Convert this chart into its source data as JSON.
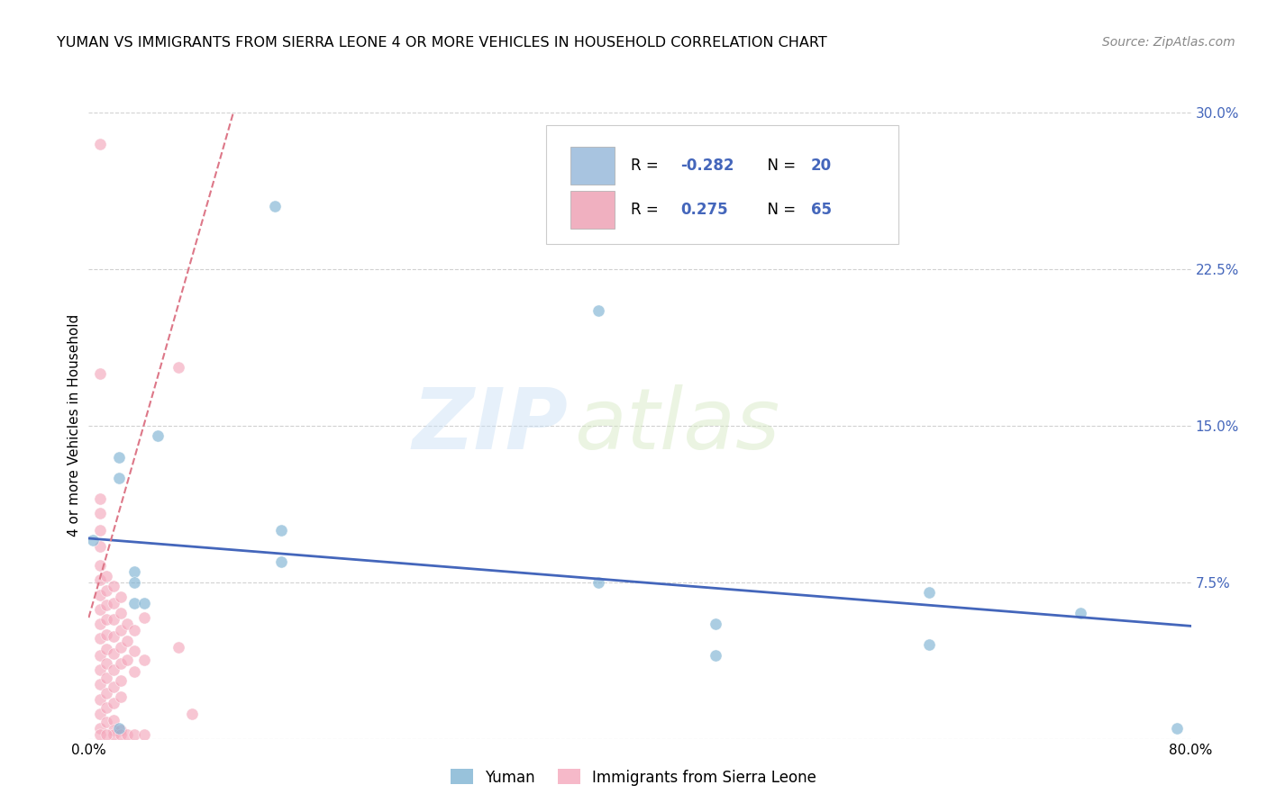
{
  "title": "YUMAN VS IMMIGRANTS FROM SIERRA LEONE 4 OR MORE VEHICLES IN HOUSEHOLD CORRELATION CHART",
  "source": "Source: ZipAtlas.com",
  "ylabel": "4 or more Vehicles in Household",
  "xlim": [
    0.0,
    0.8
  ],
  "ylim": [
    0.0,
    0.3
  ],
  "yticks": [
    0.0,
    0.075,
    0.15,
    0.225,
    0.3
  ],
  "ytick_labels_right": [
    "",
    "7.5%",
    "15.0%",
    "22.5%",
    "30.0%"
  ],
  "xticks": [
    0.0,
    0.2,
    0.4,
    0.6,
    0.8
  ],
  "xtick_labels": [
    "0.0%",
    "",
    "",
    "",
    "80.0%"
  ],
  "legend_r1": "R = -0.282",
  "legend_n1": "N = 20",
  "legend_r2": "R =  0.275",
  "legend_n2": "N = 65",
  "watermark_zip": "ZIP",
  "watermark_atlas": "atlas",
  "blue_color": "#a8c4e0",
  "pink_color": "#f0b0c0",
  "blue_dot_color": "#7fb3d3",
  "pink_dot_color": "#f4a8bc",
  "blue_line_color": "#4466bb",
  "pink_line_color": "#dd7788",
  "right_axis_color": "#4466bb",
  "blue_scatter": [
    [
      0.003,
      0.095
    ],
    [
      0.135,
      0.255
    ],
    [
      0.37,
      0.205
    ],
    [
      0.022,
      0.135
    ],
    [
      0.022,
      0.125
    ],
    [
      0.05,
      0.145
    ],
    [
      0.14,
      0.1
    ],
    [
      0.14,
      0.085
    ],
    [
      0.033,
      0.08
    ],
    [
      0.033,
      0.075
    ],
    [
      0.37,
      0.075
    ],
    [
      0.455,
      0.055
    ],
    [
      0.61,
      0.07
    ],
    [
      0.72,
      0.06
    ],
    [
      0.79,
      0.005
    ],
    [
      0.455,
      0.04
    ],
    [
      0.61,
      0.045
    ],
    [
      0.033,
      0.065
    ],
    [
      0.04,
      0.065
    ],
    [
      0.022,
      0.005
    ]
  ],
  "pink_scatter": [
    [
      0.008,
      0.285
    ],
    [
      0.008,
      0.175
    ],
    [
      0.065,
      0.178
    ],
    [
      0.008,
      0.115
    ],
    [
      0.008,
      0.108
    ],
    [
      0.008,
      0.1
    ],
    [
      0.008,
      0.092
    ],
    [
      0.008,
      0.083
    ],
    [
      0.008,
      0.076
    ],
    [
      0.008,
      0.069
    ],
    [
      0.008,
      0.062
    ],
    [
      0.008,
      0.055
    ],
    [
      0.008,
      0.048
    ],
    [
      0.008,
      0.04
    ],
    [
      0.008,
      0.033
    ],
    [
      0.008,
      0.026
    ],
    [
      0.008,
      0.019
    ],
    [
      0.008,
      0.012
    ],
    [
      0.008,
      0.005
    ],
    [
      0.013,
      0.078
    ],
    [
      0.013,
      0.071
    ],
    [
      0.013,
      0.064
    ],
    [
      0.013,
      0.057
    ],
    [
      0.013,
      0.05
    ],
    [
      0.013,
      0.043
    ],
    [
      0.013,
      0.036
    ],
    [
      0.013,
      0.029
    ],
    [
      0.013,
      0.022
    ],
    [
      0.013,
      0.015
    ],
    [
      0.013,
      0.008
    ],
    [
      0.018,
      0.073
    ],
    [
      0.018,
      0.065
    ],
    [
      0.018,
      0.057
    ],
    [
      0.018,
      0.049
    ],
    [
      0.018,
      0.041
    ],
    [
      0.018,
      0.033
    ],
    [
      0.018,
      0.025
    ],
    [
      0.018,
      0.017
    ],
    [
      0.018,
      0.009
    ],
    [
      0.023,
      0.068
    ],
    [
      0.023,
      0.06
    ],
    [
      0.023,
      0.052
    ],
    [
      0.023,
      0.044
    ],
    [
      0.023,
      0.036
    ],
    [
      0.023,
      0.028
    ],
    [
      0.023,
      0.02
    ],
    [
      0.028,
      0.055
    ],
    [
      0.028,
      0.047
    ],
    [
      0.028,
      0.038
    ],
    [
      0.033,
      0.052
    ],
    [
      0.033,
      0.042
    ],
    [
      0.033,
      0.032
    ],
    [
      0.04,
      0.058
    ],
    [
      0.04,
      0.038
    ],
    [
      0.065,
      0.044
    ],
    [
      0.075,
      0.012
    ],
    [
      0.018,
      0.004
    ],
    [
      0.023,
      0.004
    ],
    [
      0.018,
      0.002
    ],
    [
      0.023,
      0.002
    ],
    [
      0.028,
      0.002
    ],
    [
      0.033,
      0.002
    ],
    [
      0.04,
      0.002
    ],
    [
      0.008,
      0.002
    ],
    [
      0.013,
      0.002
    ]
  ],
  "blue_trend_x": [
    0.0,
    0.8
  ],
  "blue_trend_y": [
    0.096,
    0.054
  ],
  "pink_trend_x": [
    0.0,
    0.105
  ],
  "pink_trend_y": [
    0.058,
    0.3
  ]
}
